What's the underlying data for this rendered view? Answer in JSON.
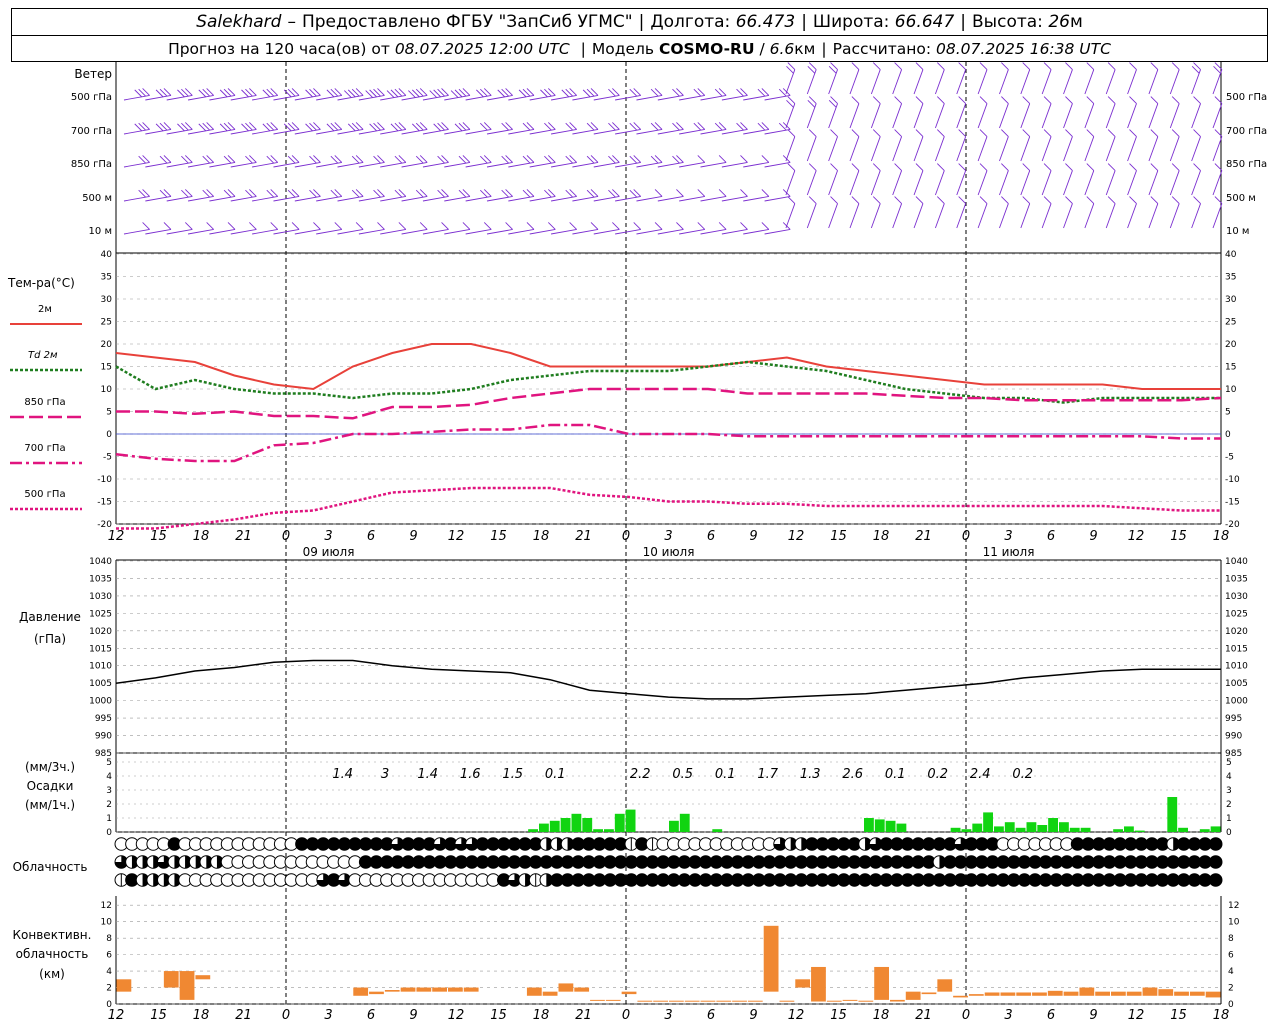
{
  "header": {
    "station": "Salekhard",
    "dash": "–",
    "provider": "Предоставлено ФГБУ \"ЗапСиб УГМС\"",
    "lon_label": "Долгота:",
    "lon_value": "66.473",
    "lat_label": "Широта:",
    "lat_value": "66.647",
    "alt_label": "Высота:",
    "alt_value": "26",
    "alt_unit": "м",
    "forecast_prefix": "Прогноз на 120 часа(ов) от",
    "forecast_time": "08.07.2025 12:00 UTC",
    "model_label": "Модель",
    "model_name": "COSMO-RU",
    "model_sep": "/",
    "model_res": "6.6",
    "model_res_unit": "км",
    "calc_label": "Рассчитано:",
    "calc_time": "08.07.2025 16:38 UTC"
  },
  "colors": {
    "t2m": "#e8413a",
    "td2m": "#1f7d1f",
    "t850": "#e0147f",
    "t700": "#e0147f",
    "t500": "#e0147f",
    "precip": "#11d411",
    "conv": "#f08832",
    "wind": "#7b2fd0",
    "pressure": "#000000",
    "zero_line": "#3344cc"
  },
  "chart_data": {
    "hours": [
      12,
      15,
      18,
      21,
      0,
      3,
      6,
      9,
      12,
      15,
      18,
      21,
      0,
      3,
      6,
      9,
      12,
      15,
      18,
      21,
      0,
      3,
      6,
      9,
      12,
      15,
      18
    ],
    "dates": [
      {
        "label": "09 июля",
        "at": 15
      },
      {
        "label": "10 июля",
        "at": 39
      },
      {
        "label": "11 июля",
        "at": 63
      }
    ],
    "wind": {
      "title": "Ветер",
      "levels": [
        "500 гПа",
        "700 гПа",
        "850 гПа",
        "500 м",
        "10 м"
      ],
      "speed_kt": [
        [
          25,
          25,
          30,
          30,
          30,
          35,
          35,
          35,
          30,
          30,
          25,
          20,
          20,
          20,
          15,
          15,
          15,
          10,
          10,
          10,
          10,
          10,
          10,
          10,
          10,
          15,
          15
        ],
        [
          25,
          25,
          25,
          25,
          25,
          25,
          25,
          25,
          20,
          20,
          20,
          15,
          15,
          15,
          15,
          15,
          15,
          10,
          10,
          10,
          10,
          10,
          10,
          10,
          10,
          10,
          10
        ],
        [
          20,
          20,
          20,
          20,
          20,
          20,
          20,
          20,
          15,
          15,
          15,
          15,
          15,
          10,
          10,
          10,
          10,
          10,
          10,
          10,
          10,
          10,
          10,
          10,
          10,
          10,
          10
        ],
        [
          15,
          15,
          15,
          15,
          15,
          15,
          15,
          15,
          15,
          15,
          15,
          15,
          10,
          10,
          10,
          10,
          10,
          10,
          10,
          10,
          10,
          10,
          10,
          10,
          10,
          10,
          10
        ],
        [
          10,
          10,
          10,
          10,
          10,
          10,
          10,
          10,
          10,
          10,
          10,
          10,
          10,
          10,
          10,
          5,
          5,
          5,
          5,
          5,
          5,
          5,
          5,
          5,
          5,
          5,
          5
        ]
      ]
    },
    "temperature": {
      "title": "Тем-ра(°C)",
      "unit": "°C",
      "yticks": [
        40,
        35,
        30,
        25,
        20,
        15,
        10,
        5,
        0,
        -5,
        -10,
        -15,
        -20
      ],
      "ylim": [
        -20,
        40
      ],
      "series": [
        {
          "name": "2м",
          "values": [
            18,
            17,
            16,
            13,
            11,
            10,
            15,
            18,
            20,
            20,
            18,
            15,
            15,
            15,
            15,
            15,
            16,
            17,
            15,
            14,
            13,
            12,
            11,
            11,
            11,
            11,
            10,
            10,
            10
          ],
          "style": "solid"
        },
        {
          "name": "Td 2м",
          "values": [
            15,
            10,
            12,
            10,
            9,
            9,
            8,
            9,
            9,
            10,
            12,
            13,
            14,
            14,
            14,
            15,
            16,
            15,
            14,
            12,
            10,
            9,
            8,
            8,
            7,
            8,
            8,
            8,
            8
          ],
          "style": "dotted"
        },
        {
          "name": "850 гПа",
          "values": [
            5,
            5,
            4.5,
            5,
            4,
            4,
            3.5,
            6,
            6,
            6.5,
            8,
            9,
            10,
            10,
            10,
            10,
            9,
            9,
            9,
            9,
            8.5,
            8,
            8,
            7.5,
            7.5,
            7.5,
            7.5,
            7.5,
            8
          ],
          "style": "dashed"
        },
        {
          "name": "700 гПа",
          "values": [
            -4.5,
            -5.5,
            -6,
            -6,
            -2.5,
            -2,
            0,
            0,
            0.5,
            1,
            1,
            2,
            2,
            0,
            0,
            0,
            -0.5,
            -0.5,
            -0.5,
            -0.5,
            -0.5,
            -0.5,
            -0.5,
            -0.5,
            -0.5,
            -0.5,
            -0.5,
            -1,
            -1
          ],
          "style": "dashdot"
        },
        {
          "name": "500 гПа",
          "values": [
            -21,
            -21,
            -20,
            -19,
            -17.5,
            -17,
            -15,
            -13,
            -12.5,
            -12,
            -12,
            -12,
            -13.5,
            -14,
            -15,
            -15,
            -15.5,
            -15.5,
            -16,
            -16,
            -16,
            -16,
            -16,
            -16,
            -16,
            -16,
            -16.5,
            -17,
            -17
          ],
          "style": "fine"
        }
      ]
    },
    "pressure": {
      "title": "Давление",
      "unit": "(гПа)",
      "yticks": [
        1040,
        1035,
        1030,
        1025,
        1020,
        1015,
        1010,
        1005,
        1000,
        995,
        990,
        985
      ],
      "ylim": [
        985,
        1040
      ],
      "values": [
        1005,
        1006.5,
        1008.5,
        1009.5,
        1011,
        1011.5,
        1011.5,
        1010,
        1009,
        1008.5,
        1008,
        1006,
        1003,
        1002,
        1001,
        1000.5,
        1000.5,
        1001,
        1001.5,
        1002,
        1003,
        1004,
        1005,
        1006.5,
        1007.5,
        1008.5,
        1009,
        1009,
        1009
      ]
    },
    "precip": {
      "title_3h": "(мм/3ч.)",
      "title": "Осадки",
      "title_1h": "(мм/1ч.)",
      "yticks": [
        5,
        4,
        3,
        2,
        1,
        0
      ],
      "ylim": [
        0,
        5
      ],
      "sums": [
        {
          "at": 16,
          "label": "1.4"
        },
        {
          "at": 19,
          "label": "3"
        },
        {
          "at": 22,
          "label": "1.4"
        },
        {
          "at": 25,
          "label": "1.6"
        },
        {
          "at": 28,
          "label": "1.5"
        },
        {
          "at": 31,
          "label": "0.1"
        },
        {
          "at": 37,
          "label": "2.2"
        },
        {
          "at": 40,
          "label": "0.5"
        },
        {
          "at": 43,
          "label": "0.1"
        },
        {
          "at": 46,
          "label": "1.7"
        },
        {
          "at": 49,
          "label": "1.3"
        },
        {
          "at": 52,
          "label": "2.6"
        },
        {
          "at": 55,
          "label": "0.1"
        },
        {
          "at": 58,
          "label": "0.2"
        },
        {
          "at": 61,
          "label": "2.4"
        },
        {
          "at": 64,
          "label": "0.2"
        }
      ],
      "bars": [
        0,
        0,
        0,
        0,
        0,
        0,
        0,
        0,
        0,
        0,
        0,
        0,
        0,
        0,
        0,
        0,
        0,
        0,
        0,
        0,
        0,
        0,
        0,
        0,
        0,
        0,
        0,
        0,
        0,
        0,
        0,
        0,
        0,
        0,
        0,
        0,
        0,
        0,
        0.2,
        0.6,
        0.8,
        1.0,
        1.3,
        1.0,
        0.2,
        0.2,
        1.3,
        1.6,
        0,
        0,
        0,
        0.8,
        1.3,
        0,
        0,
        0.2,
        0,
        0,
        0,
        0,
        0,
        0,
        0,
        0,
        0,
        0,
        0,
        0,
        0,
        1.0,
        0.9,
        0.8,
        0.6,
        0,
        0,
        0,
        0,
        0.3,
        0.2,
        0.6,
        1.4,
        0.4,
        0.7,
        0.3,
        0.7,
        0.5,
        1.0,
        0.7,
        0.3,
        0.3,
        0,
        0,
        0.2,
        0.4,
        0.1,
        0,
        0,
        2.5,
        0.3,
        0,
        0.2,
        0.4
      ]
    },
    "clouds": {
      "title": "Облачность",
      "rows": [
        [
          0,
          0,
          0,
          0,
          0,
          4,
          0,
          0,
          0,
          0,
          0,
          0,
          0,
          0,
          0,
          0,
          0,
          4,
          4,
          4,
          4,
          4,
          4,
          4,
          4,
          4,
          3,
          4,
          4,
          4,
          3,
          4,
          3,
          3,
          4,
          4,
          4,
          4,
          4,
          4,
          2,
          2,
          2,
          4,
          4,
          4,
          4,
          4,
          1,
          4,
          1,
          0,
          0,
          0,
          0,
          0,
          0,
          0,
          0,
          0,
          0,
          0,
          3,
          2,
          2,
          4,
          4,
          4,
          4,
          4,
          2,
          3,
          4,
          4,
          4,
          4,
          4,
          4,
          4,
          3,
          4,
          4,
          4,
          0,
          0,
          0,
          0,
          0,
          0,
          0,
          4,
          4,
          4,
          4,
          4,
          4,
          4,
          4,
          4,
          2,
          4,
          4,
          4,
          4
        ],
        [
          3,
          2,
          2,
          2,
          3,
          2,
          2,
          2,
          2,
          2,
          0,
          0,
          0,
          0,
          0,
          0,
          0,
          0,
          0,
          0,
          0,
          0,
          0,
          4,
          4,
          4,
          4,
          4,
          4,
          4,
          4,
          4,
          4,
          4,
          4,
          4,
          4,
          4,
          4,
          4,
          4,
          4,
          4,
          4,
          4,
          4,
          4,
          4,
          4,
          4,
          4,
          4,
          4,
          4,
          4,
          4,
          4,
          4,
          4,
          4,
          4,
          4,
          4,
          4,
          4,
          4,
          4,
          4,
          4,
          4,
          4,
          4,
          4,
          4,
          4,
          4,
          4,
          2,
          4,
          4,
          4,
          4,
          4,
          4,
          4,
          4,
          4,
          4,
          4,
          4,
          4,
          4,
          4,
          4,
          4,
          4,
          4,
          4,
          4,
          4,
          4,
          4,
          4,
          4
        ],
        [
          1,
          4,
          2,
          2,
          2,
          2,
          0,
          0,
          0,
          0,
          0,
          0,
          0,
          0,
          0,
          0,
          0,
          0,
          0,
          3,
          4,
          3,
          0,
          0,
          0,
          0,
          0,
          0,
          0,
          0,
          0,
          0,
          0,
          0,
          0,
          0,
          4,
          3,
          2,
          1,
          2,
          4,
          4,
          4,
          4,
          4,
          4,
          4,
          4,
          4,
          4,
          4,
          4,
          4,
          4,
          4,
          4,
          4,
          4,
          4,
          4,
          4,
          4,
          4,
          4,
          4,
          4,
          4,
          4,
          4,
          4,
          4,
          4,
          4,
          4,
          4,
          4,
          4,
          4,
          4,
          4,
          4,
          4,
          4,
          4,
          4,
          4,
          4,
          4,
          4,
          4,
          4,
          4,
          4,
          4,
          4,
          4,
          4,
          4,
          4,
          4,
          4,
          4,
          4
        ]
      ]
    },
    "convective": {
      "title1": "Конвективн.",
      "title2": "облачность",
      "unit": "(км)",
      "yticks": [
        12,
        10,
        8,
        6,
        4,
        2,
        0
      ],
      "ylim": [
        0,
        13
      ],
      "bars": [
        [
          1.5,
          3
        ],
        [
          0,
          0
        ],
        [
          0,
          0
        ],
        [
          2,
          4
        ],
        [
          0.5,
          4
        ],
        [
          3,
          3.5
        ],
        [
          0,
          0
        ],
        [
          0,
          0
        ],
        [
          0,
          0
        ],
        [
          0,
          0
        ],
        [
          0,
          0
        ],
        [
          0,
          0
        ],
        [
          0,
          0
        ],
        [
          0,
          0
        ],
        [
          0.5,
          0.5
        ],
        [
          1,
          2
        ],
        [
          1.2,
          1.5
        ],
        [
          1.5,
          1.7
        ],
        [
          1.5,
          2
        ],
        [
          1.5,
          2
        ],
        [
          1.5,
          2
        ],
        [
          1.5,
          2
        ],
        [
          1.5,
          2
        ],
        [
          0,
          0
        ],
        [
          0,
          0
        ],
        [
          0,
          0
        ],
        [
          1,
          2
        ],
        [
          1,
          1.5
        ],
        [
          1.5,
          2.5
        ],
        [
          1.5,
          2
        ],
        [
          0.4,
          0.5
        ],
        [
          0.4,
          0.5
        ],
        [
          1.2,
          1.5
        ],
        [
          0.3,
          0.4
        ],
        [
          0.3,
          0.4
        ],
        [
          0.3,
          0.4
        ],
        [
          0.3,
          0.4
        ],
        [
          0.3,
          0.4
        ],
        [
          0.3,
          0.4
        ],
        [
          0.3,
          0.4
        ],
        [
          0.3,
          0.4
        ],
        [
          1.5,
          9.5
        ],
        [
          0.3,
          0.4
        ],
        [
          2,
          3
        ],
        [
          0.3,
          4.5
        ],
        [
          0.3,
          0.4
        ],
        [
          0.4,
          0.5
        ],
        [
          0.3,
          0.4
        ],
        [
          0.5,
          4.5
        ],
        [
          0.3,
          0.5
        ],
        [
          0.5,
          1.5
        ],
        [
          1.2,
          1.4
        ],
        [
          1.5,
          3
        ],
        [
          0.8,
          1
        ],
        [
          1,
          1.2
        ],
        [
          1,
          1.4
        ],
        [
          1,
          1.4
        ],
        [
          1,
          1.4
        ],
        [
          1,
          1.4
        ],
        [
          1,
          1.6
        ],
        [
          1,
          1.5
        ],
        [
          1,
          2
        ],
        [
          1,
          1.5
        ],
        [
          1,
          1.5
        ],
        [
          1,
          1.5
        ],
        [
          1,
          2
        ],
        [
          1,
          1.8
        ],
        [
          1,
          1.5
        ],
        [
          1,
          1.5
        ],
        [
          0.8,
          1.5
        ]
      ]
    }
  }
}
